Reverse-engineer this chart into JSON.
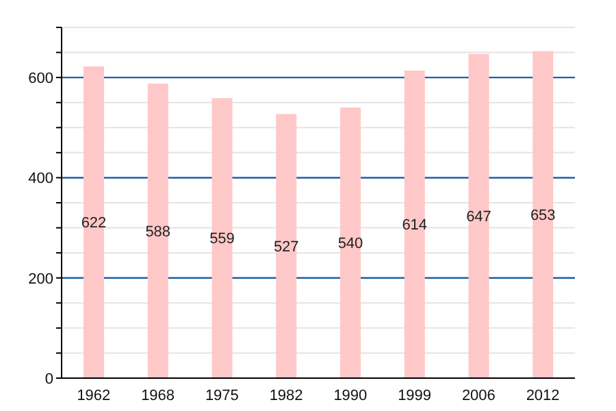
{
  "chart_data": {
    "type": "bar",
    "categories": [
      "1962",
      "1968",
      "1975",
      "1982",
      "1990",
      "1999",
      "2006",
      "2012"
    ],
    "values": [
      622,
      588,
      559,
      527,
      540,
      614,
      647,
      653
    ],
    "color": "#ffc8c8",
    "data_labels": true,
    "ylim": [
      0,
      700
    ],
    "yticks": [
      0,
      {
        "value": 50,
        "label": null
      },
      {
        "value": 100,
        "label": null
      },
      {
        "value": 150,
        "label": null
      },
      200,
      {
        "value": 250,
        "label": null
      },
      {
        "value": 300,
        "label": null
      },
      {
        "value": 350,
        "label": null
      },
      400,
      {
        "value": 450,
        "label": null
      },
      {
        "value": 500,
        "label": null
      },
      {
        "value": 550,
        "label": null
      },
      600,
      {
        "value": 650,
        "label": null
      },
      {
        "value": 700,
        "label": null
      }
    ],
    "grid": "y"
  }
}
